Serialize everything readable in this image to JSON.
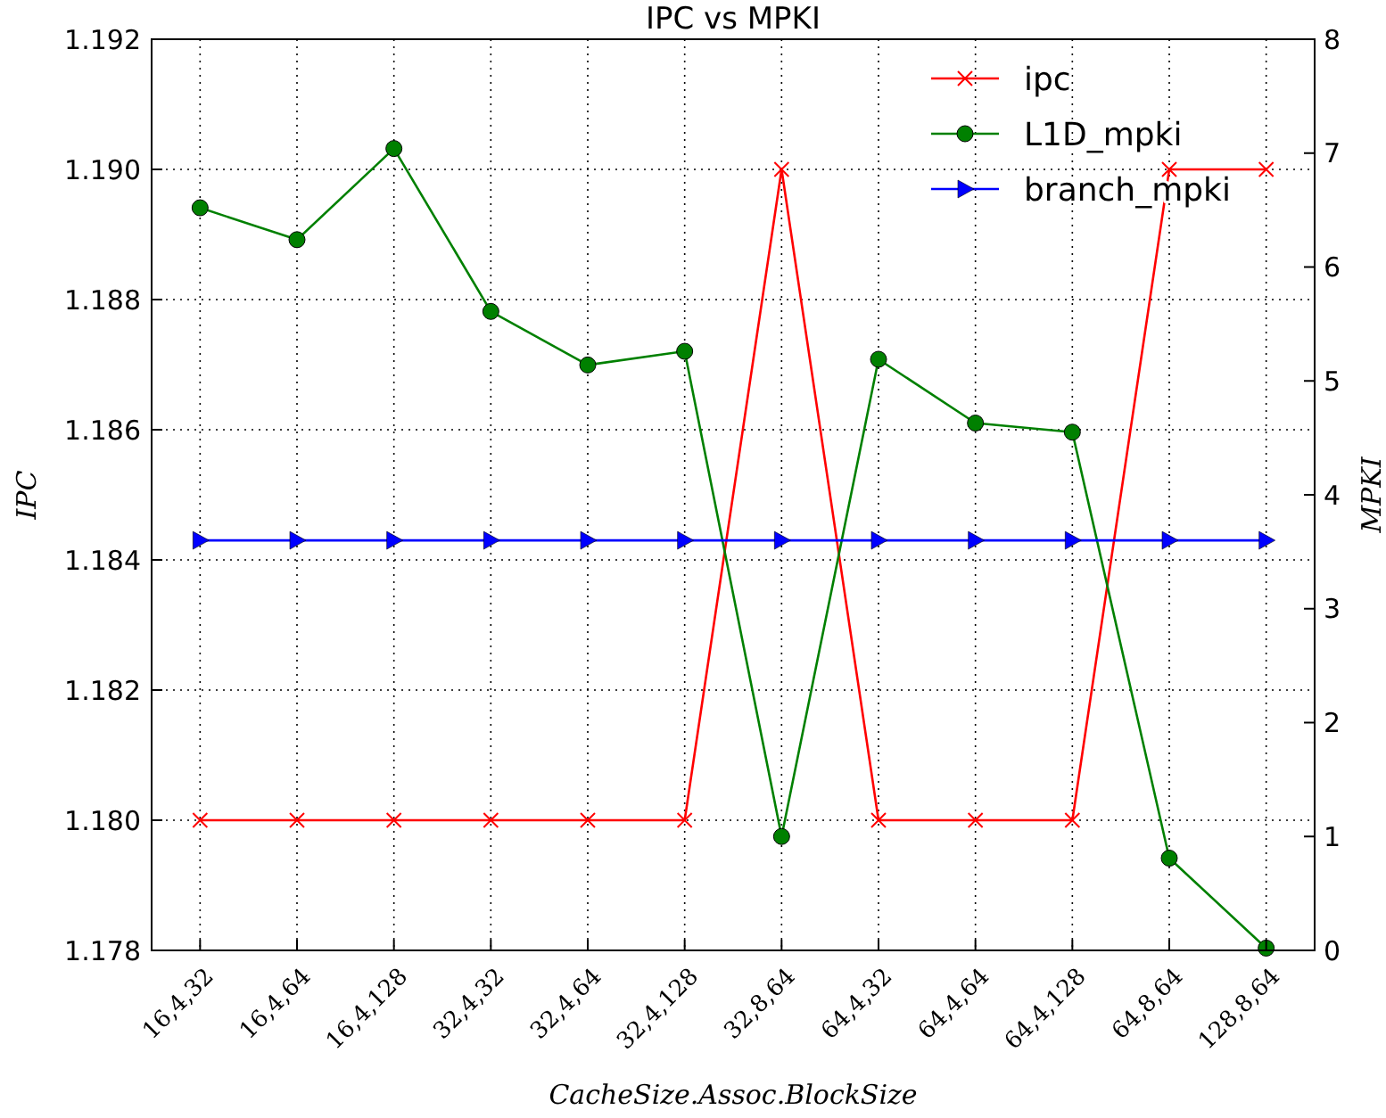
{
  "chart_data": {
    "type": "line",
    "title": "IPC vs MPKI",
    "xlabel": "CacheSize.Assoc.BlockSize",
    "ylabel": "IPC",
    "y2label": "MPKI",
    "categories": [
      "16,4,32",
      "16,4,64",
      "16,4,128",
      "32,4,32",
      "32,4,64",
      "32,4,128",
      "32,8,64",
      "64,4,32",
      "64,4,64",
      "64,4,128",
      "64,8,64",
      "128,8,64"
    ],
    "ylim": [
      1.178,
      1.192
    ],
    "yticks": [
      1.178,
      {
        "value": 1.18,
        "label": "1.180"
      },
      1.182,
      1.184,
      1.186,
      1.188,
      {
        "value": 1.19,
        "label": "1.190"
      },
      1.192
    ],
    "y2lim": [
      0,
      8
    ],
    "y2ticks": [
      0,
      1,
      2,
      3,
      4,
      5,
      6,
      7,
      8
    ],
    "grid": true,
    "legend": "top right",
    "line_style": "solid",
    "series": [
      {
        "name": "ipc",
        "color": "#ff0000",
        "marker": "cross",
        "values": [
          1.18,
          1.18,
          1.18,
          1.18,
          1.18,
          1.18,
          1.19,
          1.18,
          1.18,
          1.18,
          1.19,
          1.19
        ]
      },
      {
        "name": "L1D_mpki",
        "color": "#008000",
        "marker": "circle",
        "axis": "y2",
        "values": [
          6.52,
          6.24,
          7.04,
          5.61,
          5.14,
          5.26,
          1.0,
          5.19,
          4.63,
          4.55,
          0.81,
          0.02
        ]
      },
      {
        "name": "branch_mpki",
        "color": "#0000ff",
        "marker": "triangle",
        "axis": "y2",
        "values": [
          3.6,
          3.6,
          3.6,
          3.6,
          3.6,
          3.6,
          3.6,
          3.6,
          3.6,
          3.6,
          3.6,
          3.6
        ]
      }
    ]
  }
}
